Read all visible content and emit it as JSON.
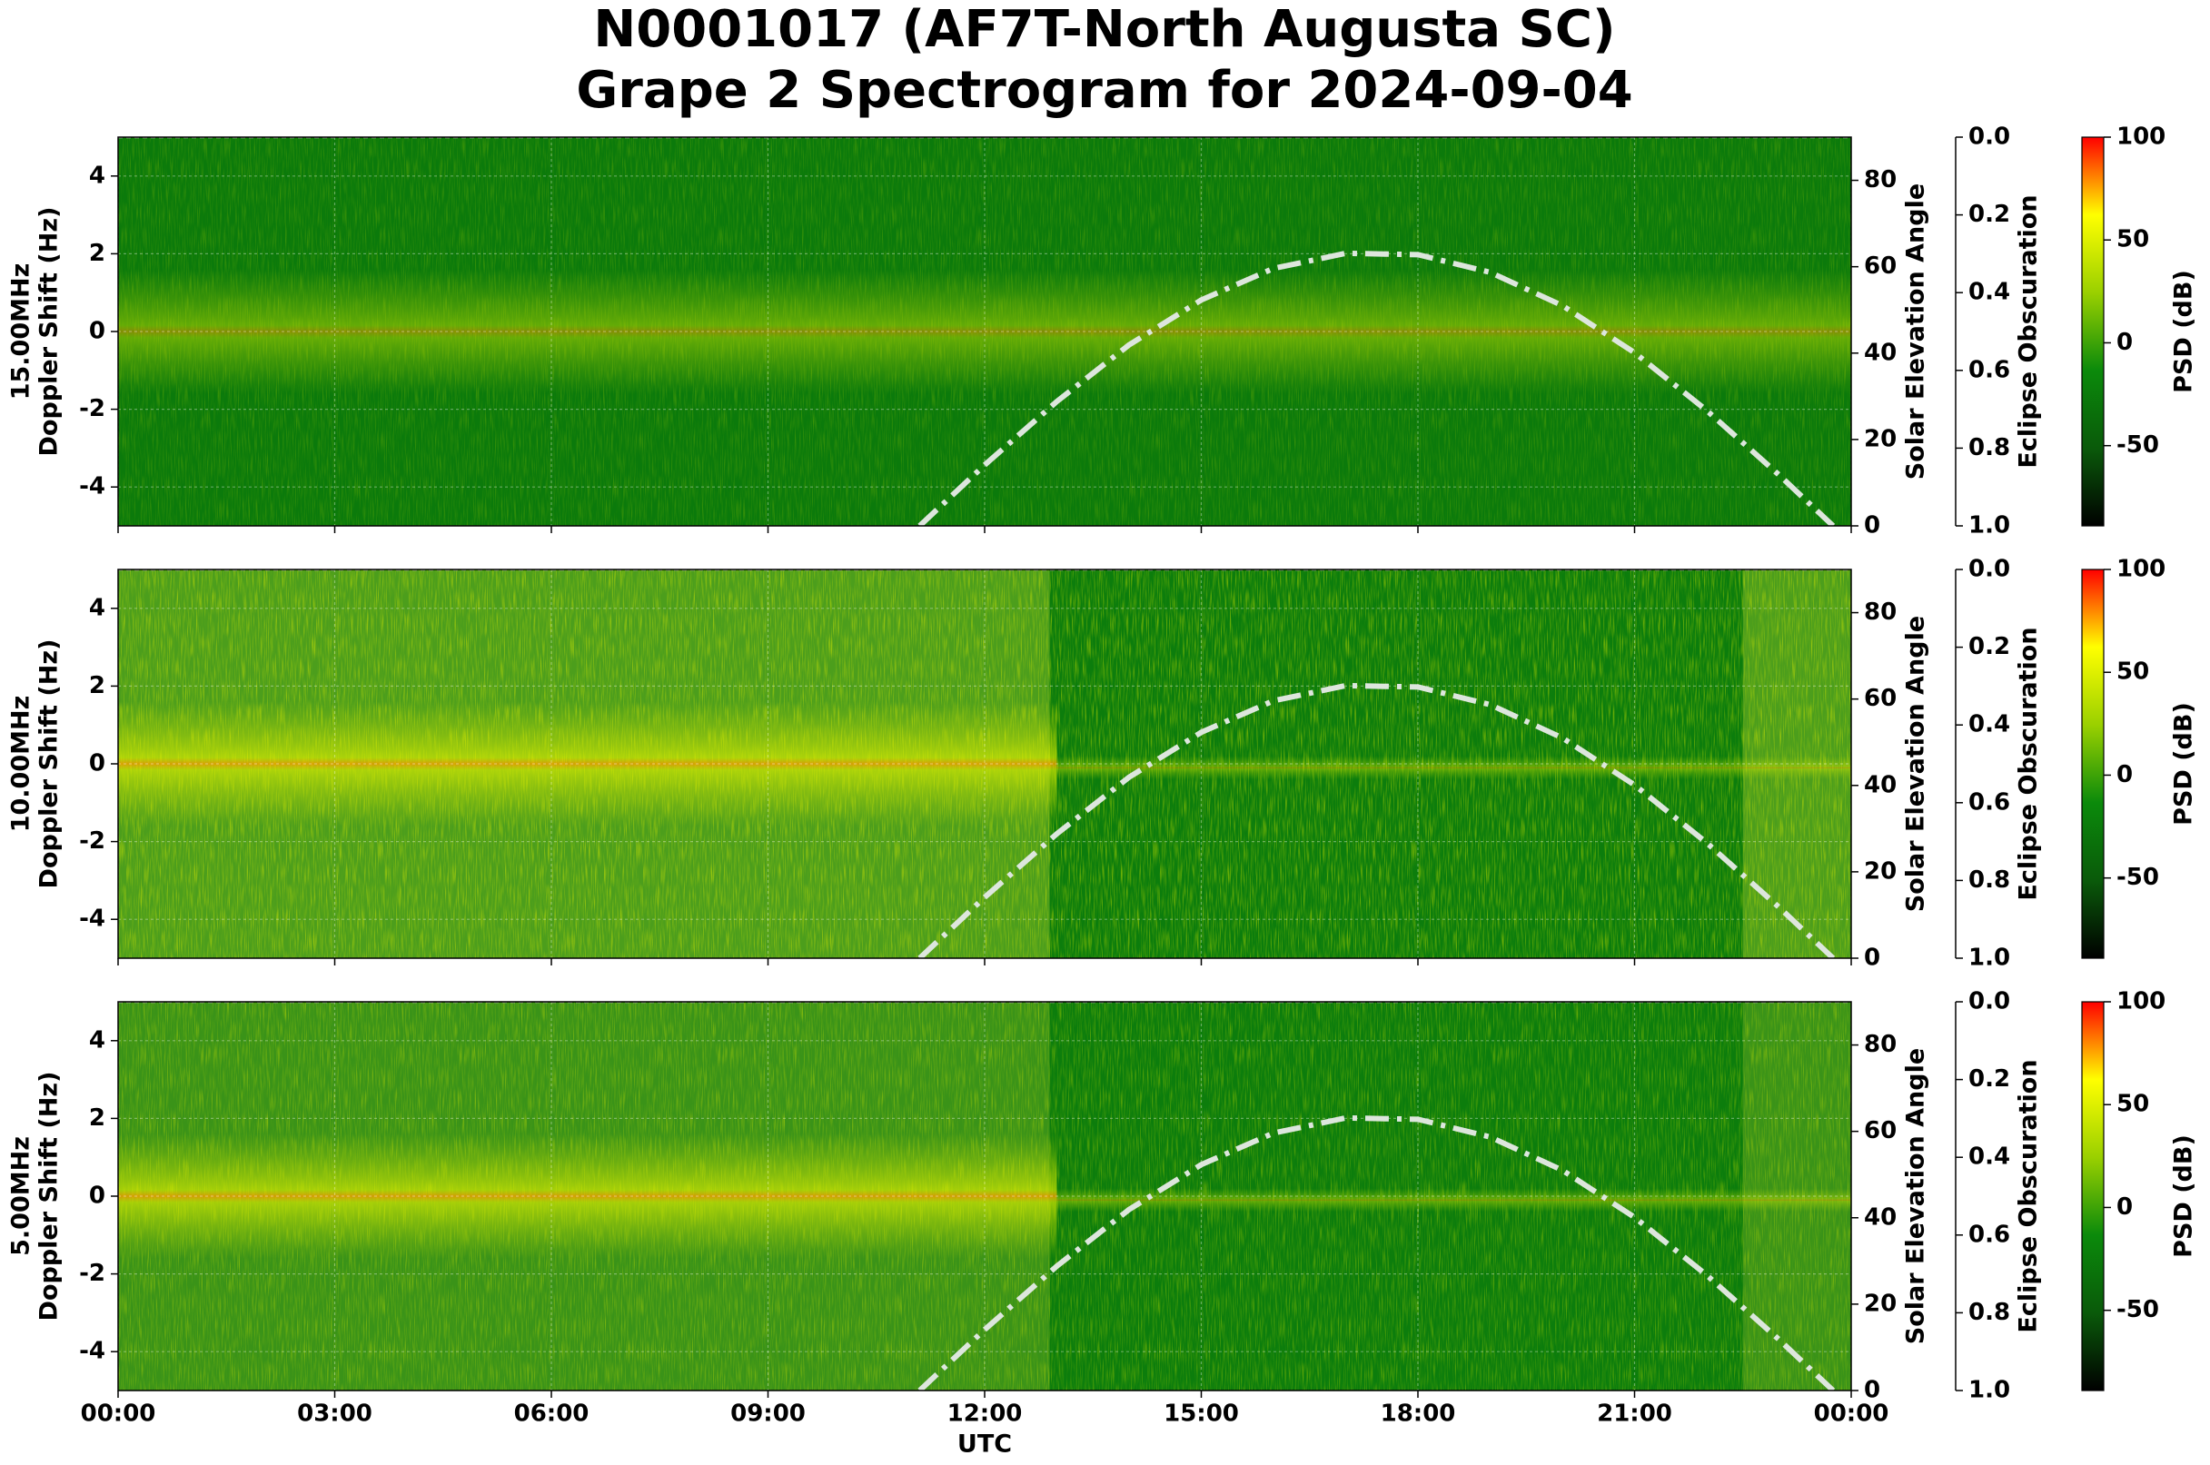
{
  "title": [
    "N0001017 (AF7T-North Augusta SC)",
    "Grape 2 Spectrogram for 2024-09-04"
  ],
  "chart_data": [
    {
      "type": "spectrogram",
      "ylabel": [
        "15.00MHz",
        "Doppler Shift (Hz)"
      ],
      "ylim": [
        -5,
        5
      ],
      "yticks": [
        -4,
        -2,
        0,
        2,
        4
      ],
      "grid": true,
      "y2label": "Solar Elevation Angle",
      "y2lim": [
        0,
        90
      ],
      "y2ticks": [
        0,
        20,
        40,
        60,
        80
      ],
      "y3label": "Eclipse Obscuration",
      "y3lim": [
        0,
        1
      ],
      "y3ticks": [
        {
          "value": 0,
          "label": "0.0"
        },
        0.2,
        0.4,
        0.6,
        0.8,
        {
          "value": 1,
          "label": "1.0"
        }
      ],
      "colorbar_label": "PSD (dB)",
      "clim": [
        -89,
        100
      ],
      "cticks": [
        -50,
        0,
        50,
        100
      ],
      "colormap": [
        "#000000",
        "#0a5a0a",
        "#0b8a0b",
        "#9ad000",
        "#ffff00",
        "#ff0000"
      ],
      "series": [
        {
          "name": "Solar Elevation",
          "color": "#dde6dd",
          "axis": "y2",
          "x": [
            11.1,
            12,
            13,
            14,
            15,
            16,
            17,
            18,
            19,
            20,
            21,
            22,
            23,
            23.75
          ],
          "values": [
            0,
            14.1,
            28.8,
            41.9,
            52.3,
            59.6,
            63.1,
            62.8,
            58.7,
            51.0,
            40.1,
            26.7,
            11.8,
            0
          ]
        },
        {
          "name": "Eclipse Obscuration",
          "color": "#bbbbbb",
          "axis": "y3",
          "x": [
            0,
            24
          ],
          "values": [
            0,
            0
          ]
        }
      ]
    },
    {
      "type": "spectrogram",
      "ylabel": [
        "10.00MHz",
        "Doppler Shift (Hz)"
      ],
      "ylim": [
        -5,
        5
      ],
      "yticks": [
        -4,
        -2,
        0,
        2,
        4
      ],
      "grid": true,
      "y2label": "Solar Elevation Angle",
      "y2lim": [
        0,
        90
      ],
      "y2ticks": [
        0,
        20,
        40,
        60,
        80
      ],
      "y3label": "Eclipse Obscuration",
      "y3lim": [
        0,
        1
      ],
      "y3ticks": [
        {
          "value": 0,
          "label": "0.0"
        },
        0.2,
        0.4,
        0.6,
        0.8,
        {
          "value": 1,
          "label": "1.0"
        }
      ],
      "colorbar_label": "PSD (dB)",
      "clim": [
        -89,
        100
      ],
      "cticks": [
        -50,
        0,
        50,
        100
      ],
      "colormap": [
        "#000000",
        "#0a5a0a",
        "#0b8a0b",
        "#9ad000",
        "#ffff00",
        "#ff0000"
      ],
      "series": [
        {
          "name": "Solar Elevation",
          "color": "#dde6dd",
          "axis": "y2",
          "x": [
            11.1,
            12,
            13,
            14,
            15,
            16,
            17,
            18,
            19,
            20,
            21,
            22,
            23,
            23.75
          ],
          "values": [
            0,
            14.1,
            28.8,
            41.9,
            52.3,
            59.6,
            63.1,
            62.8,
            58.7,
            51.0,
            40.1,
            26.7,
            11.8,
            0
          ]
        },
        {
          "name": "Eclipse Obscuration",
          "color": "#bbbbbb",
          "axis": "y3",
          "x": [
            0,
            24
          ],
          "values": [
            0,
            0
          ]
        }
      ]
    },
    {
      "type": "spectrogram",
      "ylabel": [
        "5.00MHz",
        "Doppler Shift (Hz)"
      ],
      "ylim": [
        -5,
        5
      ],
      "yticks": [
        -4,
        -2,
        0,
        2,
        4
      ],
      "grid": true,
      "y2label": "Solar Elevation Angle",
      "y2lim": [
        0,
        90
      ],
      "y2ticks": [
        0,
        20,
        40,
        60,
        80
      ],
      "y3label": "Eclipse Obscuration",
      "y3lim": [
        0,
        1
      ],
      "y3ticks": [
        {
          "value": 0,
          "label": "0.0"
        },
        0.2,
        0.4,
        0.6,
        0.8,
        {
          "value": 1,
          "label": "1.0"
        }
      ],
      "colorbar_label": "PSD (dB)",
      "clim": [
        -89,
        100
      ],
      "cticks": [
        -50,
        0,
        50,
        100
      ],
      "colormap": [
        "#000000",
        "#0a5a0a",
        "#0b8a0b",
        "#9ad000",
        "#ffff00",
        "#ff0000"
      ],
      "xlabel": "UTC",
      "xlim": [
        0,
        24
      ],
      "xticks": [
        {
          "value": 0,
          "label": "00:00"
        },
        {
          "value": 3,
          "label": "03:00"
        },
        {
          "value": 6,
          "label": "06:00"
        },
        {
          "value": 9,
          "label": "09:00"
        },
        {
          "value": 12,
          "label": "12:00"
        },
        {
          "value": 15,
          "label": "15:00"
        },
        {
          "value": 18,
          "label": "18:00"
        },
        {
          "value": 21,
          "label": "21:00"
        },
        {
          "value": 24,
          "label": "00:00"
        }
      ],
      "series": [
        {
          "name": "Solar Elevation",
          "color": "#dde6dd",
          "axis": "y2",
          "x": [
            11.1,
            12,
            13,
            14,
            15,
            16,
            17,
            18,
            19,
            20,
            21,
            22,
            23,
            23.75
          ],
          "values": [
            0,
            14.1,
            28.8,
            41.9,
            52.3,
            59.6,
            63.1,
            62.8,
            58.7,
            51.0,
            40.1,
            26.7,
            11.8,
            0
          ]
        },
        {
          "name": "Eclipse Obscuration",
          "color": "#bbbbbb",
          "axis": "y3",
          "x": [
            0,
            24
          ],
          "values": [
            0,
            0
          ]
        }
      ]
    }
  ]
}
